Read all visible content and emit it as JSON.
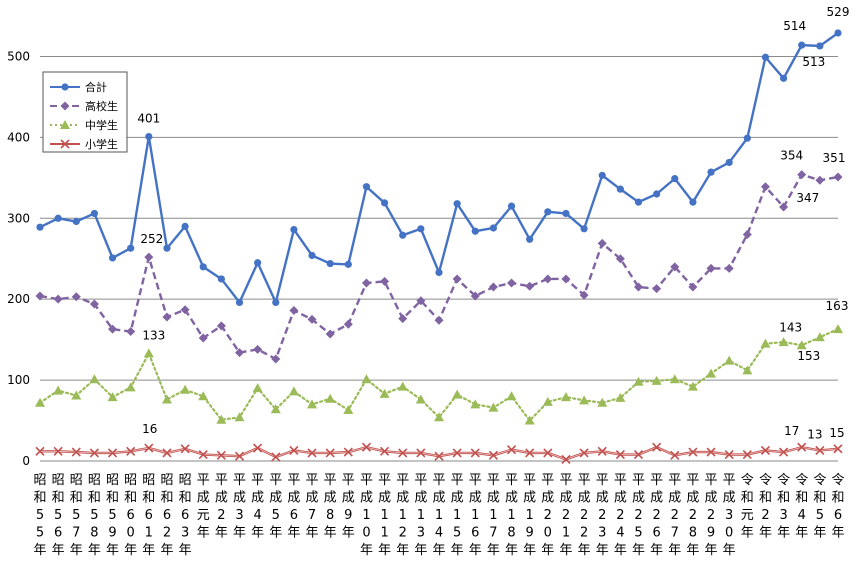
{
  "chart_data": {
    "type": "line",
    "title": "",
    "xlabel": "",
    "ylabel": "",
    "ylim": [
      0,
      550
    ],
    "yticks": [
      0,
      100,
      200,
      300,
      400,
      500
    ],
    "grid": "horizontal",
    "legend_position": "top-left",
    "categories": [
      "昭和55年",
      "昭和56年",
      "昭和57年",
      "昭和58年",
      "昭和59年",
      "昭和60年",
      "昭和61年",
      "昭和62年",
      "昭和63年",
      "平成元年",
      "平成2年",
      "平成3年",
      "平成4年",
      "平成5年",
      "平成6年",
      "平成7年",
      "平成8年",
      "平成9年",
      "平成10年",
      "平成11年",
      "平成12年",
      "平成13年",
      "平成14年",
      "平成15年",
      "平成16年",
      "平成17年",
      "平成18年",
      "平成19年",
      "平成20年",
      "平成21年",
      "平成22年",
      "平成23年",
      "平成24年",
      "平成25年",
      "平成26年",
      "平成27年",
      "平成28年",
      "平成29年",
      "平成30年",
      "令和元年",
      "令和2年",
      "令和3年",
      "令和4年",
      "令和5年",
      "令和6年"
    ],
    "series": [
      {
        "name": "合計",
        "color": "#4472C4",
        "style": "solid",
        "marker": "circle",
        "values": [
          289,
          300,
          296,
          306,
          251,
          263,
          401,
          263,
          290,
          240,
          225,
          196,
          245,
          196,
          286,
          254,
          244,
          243,
          339,
          319,
          279,
          287,
          233,
          318,
          284,
          288,
          315,
          274,
          308,
          306,
          287,
          353,
          336,
          320,
          330,
          349,
          320,
          357,
          369,
          399,
          499,
          473,
          514,
          513,
          529
        ]
      },
      {
        "name": "高校生",
        "color": "#8064A2",
        "style": "dashed",
        "marker": "diamond",
        "values": [
          204,
          200,
          203,
          194,
          163,
          160,
          252,
          178,
          187,
          152,
          167,
          134,
          138,
          126,
          186,
          175,
          157,
          169,
          220,
          222,
          176,
          198,
          174,
          225,
          204,
          215,
          220,
          216,
          225,
          225,
          205,
          269,
          250,
          215,
          213,
          240,
          215,
          238,
          238,
          280,
          339,
          314,
          354,
          347,
          351
        ]
      },
      {
        "name": "中学生",
        "color": "#9BBB59",
        "style": "dotted",
        "marker": "triangle",
        "values": [
          72,
          87,
          81,
          101,
          79,
          91,
          133,
          76,
          88,
          80,
          51,
          54,
          90,
          64,
          86,
          70,
          77,
          63,
          101,
          83,
          92,
          76,
          54,
          82,
          70,
          66,
          80,
          50,
          73,
          79,
          75,
          72,
          78,
          98,
          99,
          101,
          92,
          108,
          124,
          112,
          145,
          147,
          143,
          153,
          163
        ]
      },
      {
        "name": "小学生",
        "color": "#C0504D",
        "style": "solid",
        "marker": "x",
        "values": [
          12,
          12,
          11,
          10,
          10,
          12,
          16,
          10,
          15,
          8,
          7,
          6,
          16,
          5,
          13,
          10,
          10,
          11,
          17,
          12,
          10,
          10,
          6,
          10,
          10,
          7,
          14,
          10,
          10,
          2,
          10,
          12,
          8,
          8,
          17,
          7,
          11,
          11,
          8,
          8,
          13,
          11,
          17,
          13,
          15
        ]
      }
    ],
    "annotations": [
      {
        "series": 0,
        "index": 6,
        "text": "401"
      },
      {
        "series": 0,
        "index": 42,
        "text": "514"
      },
      {
        "series": 0,
        "index": 43,
        "text": "513"
      },
      {
        "series": 0,
        "index": 44,
        "text": "529"
      },
      {
        "series": 1,
        "index": 6,
        "text": "252"
      },
      {
        "series": 1,
        "index": 42,
        "text": "354"
      },
      {
        "series": 1,
        "index": 43,
        "text": "347"
      },
      {
        "series": 1,
        "index": 44,
        "text": "351"
      },
      {
        "series": 2,
        "index": 6,
        "text": "133"
      },
      {
        "series": 2,
        "index": 42,
        "text": "143"
      },
      {
        "series": 2,
        "index": 43,
        "text": "153"
      },
      {
        "series": 2,
        "index": 44,
        "text": "163"
      },
      {
        "series": 3,
        "index": 6,
        "text": "16"
      },
      {
        "series": 3,
        "index": 42,
        "text": "17"
      },
      {
        "series": 3,
        "index": 43,
        "text": "13"
      },
      {
        "series": 3,
        "index": 44,
        "text": "15"
      }
    ]
  }
}
